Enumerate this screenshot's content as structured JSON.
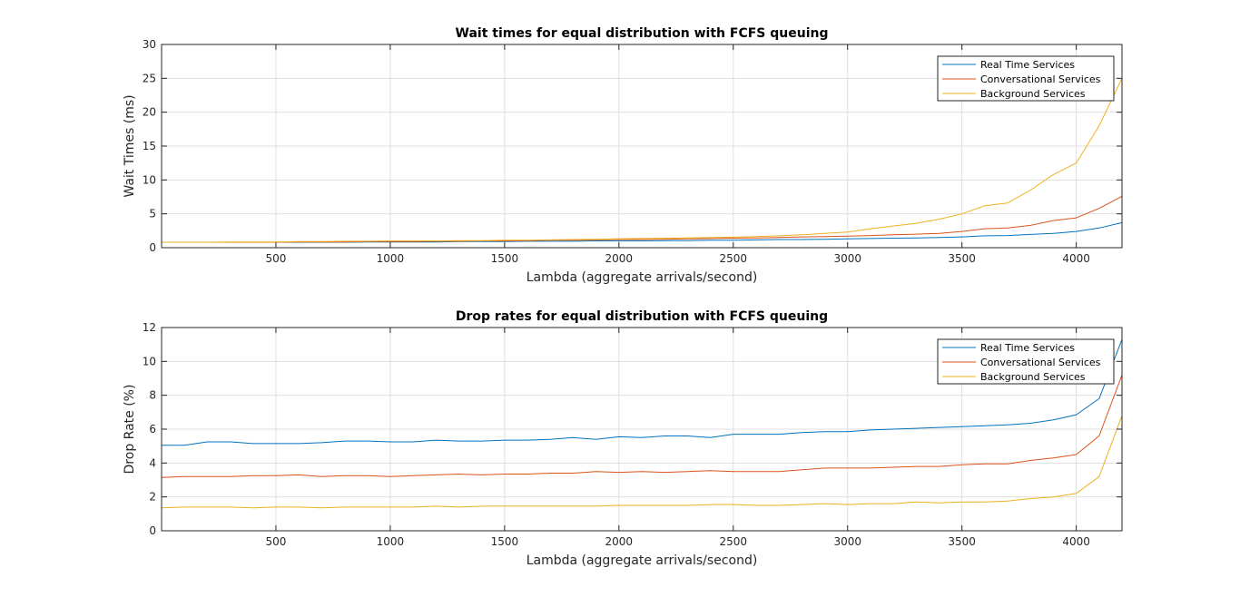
{
  "chart_data": [
    {
      "type": "line",
      "title": "Wait times for equal distribution with FCFS queuing",
      "xlabel": "Lambda (aggregate arrivals/second)",
      "ylabel": "Wait Times (ms)",
      "xlim": [
        0,
        4200
      ],
      "ylim": [
        0,
        30
      ],
      "xticks": [
        500,
        1000,
        1500,
        2000,
        2500,
        3000,
        3500,
        4000
      ],
      "yticks": [
        0,
        5,
        10,
        15,
        20,
        25,
        30
      ],
      "grid": true,
      "legend_position": "top-right",
      "x": [
        0,
        100,
        200,
        300,
        400,
        500,
        600,
        700,
        800,
        900,
        1000,
        1100,
        1200,
        1300,
        1400,
        1500,
        1600,
        1700,
        1800,
        1900,
        2000,
        2100,
        2200,
        2300,
        2400,
        2500,
        2600,
        2700,
        2800,
        2900,
        3000,
        3100,
        3200,
        3300,
        3400,
        3500,
        3600,
        3700,
        3800,
        3900,
        4000,
        4100,
        4200
      ],
      "series": [
        {
          "name": "Real Time Services",
          "color": "#0072BD",
          "values": [
            0.8,
            0.8,
            0.8,
            0.8,
            0.8,
            0.8,
            0.8,
            0.8,
            0.8,
            0.85,
            0.85,
            0.85,
            0.85,
            0.9,
            0.9,
            0.9,
            0.95,
            0.95,
            0.95,
            1.0,
            1.0,
            1.0,
            1.05,
            1.05,
            1.1,
            1.1,
            1.15,
            1.2,
            1.2,
            1.25,
            1.3,
            1.35,
            1.4,
            1.45,
            1.5,
            1.6,
            1.75,
            1.8,
            1.95,
            2.1,
            2.4,
            2.9,
            3.7
          ]
        },
        {
          "name": "Conversational Services",
          "color": "#D95319",
          "values": [
            0.8,
            0.8,
            0.8,
            0.8,
            0.8,
            0.8,
            0.85,
            0.85,
            0.85,
            0.9,
            0.9,
            0.9,
            0.95,
            0.95,
            1.0,
            1.0,
            1.05,
            1.1,
            1.1,
            1.15,
            1.2,
            1.2,
            1.25,
            1.3,
            1.35,
            1.4,
            1.45,
            1.5,
            1.6,
            1.65,
            1.7,
            1.8,
            1.9,
            2.0,
            2.1,
            2.4,
            2.8,
            2.9,
            3.3,
            4.0,
            4.4,
            5.8,
            7.6
          ]
        },
        {
          "name": "Background Services",
          "color": "#EDB120",
          "values": [
            0.8,
            0.8,
            0.8,
            0.85,
            0.85,
            0.85,
            0.9,
            0.9,
            0.95,
            0.95,
            1.0,
            1.0,
            1.0,
            1.05,
            1.05,
            1.1,
            1.1,
            1.15,
            1.2,
            1.25,
            1.3,
            1.35,
            1.4,
            1.45,
            1.5,
            1.55,
            1.65,
            1.75,
            1.9,
            2.1,
            2.3,
            2.8,
            3.2,
            3.6,
            4.2,
            5.0,
            6.2,
            6.6,
            8.5,
            10.8,
            12.5,
            18.0,
            25.0
          ]
        }
      ]
    },
    {
      "type": "line",
      "title": "Drop rates for equal distribution with FCFS queuing",
      "xlabel": "Lambda (aggregate arrivals/second)",
      "ylabel": "Drop Rate (%)",
      "xlim": [
        0,
        4200
      ],
      "ylim": [
        0,
        12
      ],
      "xticks": [
        500,
        1000,
        1500,
        2000,
        2500,
        3000,
        3500,
        4000
      ],
      "yticks": [
        0,
        2,
        4,
        6,
        8,
        10,
        12
      ],
      "grid": true,
      "legend_position": "top-right",
      "x": [
        0,
        100,
        200,
        300,
        400,
        500,
        600,
        700,
        800,
        900,
        1000,
        1100,
        1200,
        1300,
        1400,
        1500,
        1600,
        1700,
        1800,
        1900,
        2000,
        2100,
        2200,
        2300,
        2400,
        2500,
        2600,
        2700,
        2800,
        2900,
        3000,
        3100,
        3200,
        3300,
        3400,
        3500,
        3600,
        3700,
        3800,
        3900,
        4000,
        4100,
        4200
      ],
      "series": [
        {
          "name": "Real Time Services",
          "color": "#0072BD",
          "values": [
            5.05,
            5.05,
            5.25,
            5.25,
            5.15,
            5.15,
            5.15,
            5.2,
            5.3,
            5.3,
            5.25,
            5.25,
            5.35,
            5.3,
            5.3,
            5.35,
            5.35,
            5.4,
            5.5,
            5.4,
            5.55,
            5.5,
            5.6,
            5.6,
            5.5,
            5.7,
            5.7,
            5.7,
            5.8,
            5.85,
            5.85,
            5.95,
            6.0,
            6.05,
            6.1,
            6.15,
            6.2,
            6.25,
            6.35,
            6.55,
            6.85,
            7.8,
            11.3
          ]
        },
        {
          "name": "Conversational Services",
          "color": "#D95319",
          "values": [
            3.15,
            3.2,
            3.2,
            3.2,
            3.25,
            3.25,
            3.3,
            3.2,
            3.25,
            3.25,
            3.2,
            3.25,
            3.3,
            3.35,
            3.3,
            3.35,
            3.35,
            3.4,
            3.4,
            3.5,
            3.45,
            3.5,
            3.45,
            3.5,
            3.55,
            3.5,
            3.5,
            3.5,
            3.6,
            3.7,
            3.7,
            3.7,
            3.75,
            3.8,
            3.8,
            3.9,
            3.95,
            3.95,
            4.15,
            4.3,
            4.5,
            5.6,
            9.2
          ]
        },
        {
          "name": "Background Services",
          "color": "#EDB120",
          "values": [
            1.35,
            1.4,
            1.4,
            1.4,
            1.35,
            1.4,
            1.4,
            1.35,
            1.4,
            1.4,
            1.4,
            1.4,
            1.45,
            1.4,
            1.45,
            1.45,
            1.45,
            1.45,
            1.45,
            1.45,
            1.5,
            1.5,
            1.5,
            1.5,
            1.55,
            1.55,
            1.5,
            1.5,
            1.55,
            1.6,
            1.55,
            1.6,
            1.6,
            1.7,
            1.65,
            1.7,
            1.7,
            1.75,
            1.9,
            2.0,
            2.2,
            3.2,
            6.8
          ]
        }
      ]
    }
  ]
}
